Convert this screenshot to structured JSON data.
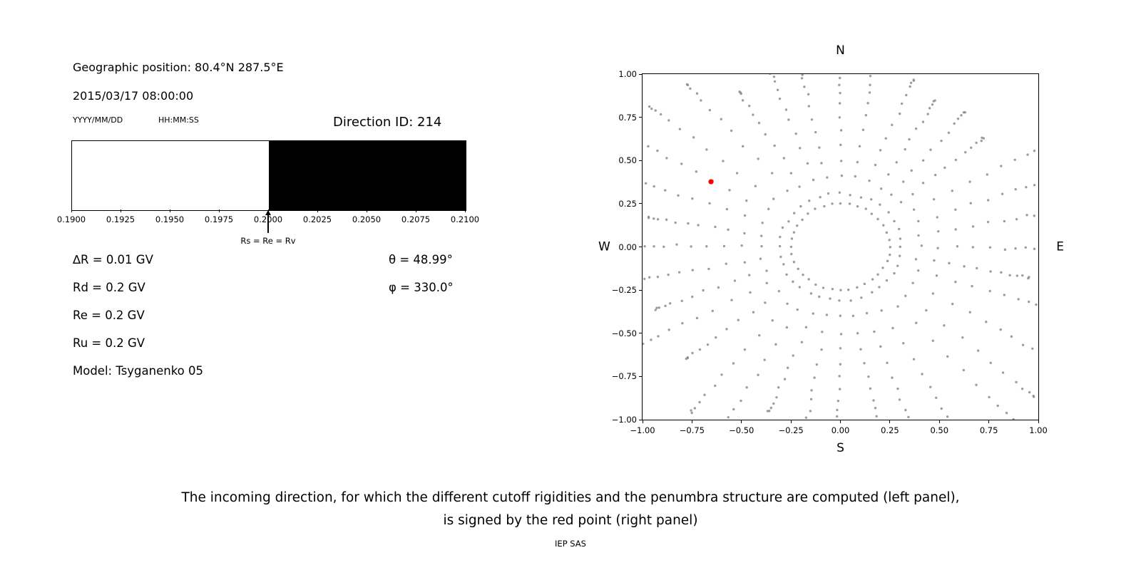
{
  "left_panel": {
    "geo_position": "Geographic position: 80.4°N 287.5°E",
    "datetime": "2015/03/17 08:00:00",
    "date_format_label": "YYYY/MM/DD",
    "time_format_label": "HH:MM:SS",
    "direction_id_label": "Direction ID: 214",
    "params": [
      "∆R = 0.01 GV",
      "Rd = 0.2 GV",
      "Re = 0.2 GV",
      "Ru = 0.2 GV",
      "Model: Tsyganenko 05"
    ],
    "angles": [
      "θ = 48.99°",
      "φ = 330.0°"
    ]
  },
  "caption": {
    "line1": "The incoming direction, for which the different cutoff rigidities and the penumbra structure are computed (left panel),",
    "line2": "is signed by the red point (right panel)",
    "credit": "IEP SAS"
  },
  "chart_data": [
    {
      "type": "bar",
      "name": "penumbra-structure",
      "xlim": [
        0.19,
        0.21
      ],
      "xticks": [
        "0.1900",
        "0.1925",
        "0.1950",
        "0.1975",
        "0.2000",
        "0.2025",
        "0.2050",
        "0.2075",
        "0.2100"
      ],
      "bands": [
        {
          "from": 0.19,
          "to": 0.2,
          "color": "#ffffff"
        },
        {
          "from": 0.2,
          "to": 0.21,
          "color": "#000000"
        }
      ],
      "annotation": {
        "x": 0.2,
        "label": "Rs = Re = Rv"
      }
    },
    {
      "type": "scatter",
      "name": "incoming-directions",
      "xlim": [
        -1,
        1
      ],
      "ylim": [
        -1,
        1
      ],
      "xticks": [
        "−1.00",
        "−0.75",
        "−0.50",
        "−0.25",
        "0.00",
        "0.25",
        "0.50",
        "0.75",
        "1.00"
      ],
      "yticks": [
        "1.00",
        "0.75",
        "0.50",
        "0.25",
        "0.00",
        "−0.25",
        "−0.50",
        "−0.75",
        "−1.00"
      ],
      "compass": {
        "top": "N",
        "bottom": "S",
        "left": "W",
        "right": "E"
      },
      "grid_directions": {
        "num_rays": 36,
        "inner_ring_radius": 0.25,
        "ray_start_radius": 0.31,
        "dots_per_ray": 13,
        "max_radius": 1.46,
        "dot_color": "#8c8c8c"
      },
      "red_point": {
        "x": -0.654,
        "y": 0.377,
        "color": "#ff0000"
      }
    }
  ]
}
